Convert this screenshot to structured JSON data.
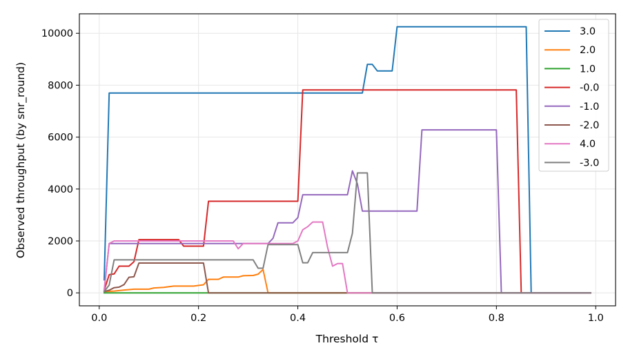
{
  "chart_data": {
    "type": "line",
    "title": "",
    "xlabel": "Threshold τ",
    "ylabel": "Observed throughput (by snr_round)",
    "xlim": [
      -0.04,
      1.04
    ],
    "ylim": [
      -500,
      10750
    ],
    "xticks": [
      0.0,
      0.2,
      0.4,
      0.6,
      0.8,
      1.0
    ],
    "xtick_labels": [
      "0.0",
      "0.2",
      "0.4",
      "0.6",
      "0.8",
      "1.0"
    ],
    "yticks": [
      0,
      2000,
      4000,
      6000,
      8000,
      10000
    ],
    "ytick_labels": [
      "0",
      "2000",
      "4000",
      "6000",
      "8000",
      "10000"
    ],
    "grid": true,
    "legend_position": "top-right",
    "series": [
      {
        "name": "3.0",
        "color": "#1f77b4",
        "points": [
          [
            0.01,
            500
          ],
          [
            0.02,
            7700
          ],
          [
            0.53,
            7700
          ],
          [
            0.54,
            8800
          ],
          [
            0.55,
            8800
          ],
          [
            0.56,
            8550
          ],
          [
            0.59,
            8550
          ],
          [
            0.6,
            10250
          ],
          [
            0.86,
            10250
          ],
          [
            0.87,
            0
          ],
          [
            0.99,
            0
          ]
        ]
      },
      {
        "name": "2.0",
        "color": "#ff7f0e",
        "points": [
          [
            0.01,
            50
          ],
          [
            0.03,
            70
          ],
          [
            0.05,
            110
          ],
          [
            0.07,
            140
          ],
          [
            0.1,
            140
          ],
          [
            0.11,
            190
          ],
          [
            0.13,
            210
          ],
          [
            0.15,
            260
          ],
          [
            0.19,
            260
          ],
          [
            0.21,
            310
          ],
          [
            0.22,
            520
          ],
          [
            0.24,
            520
          ],
          [
            0.25,
            610
          ],
          [
            0.28,
            610
          ],
          [
            0.29,
            660
          ],
          [
            0.31,
            670
          ],
          [
            0.32,
            720
          ],
          [
            0.33,
            900
          ],
          [
            0.34,
            0
          ],
          [
            0.99,
            0
          ]
        ]
      },
      {
        "name": "1.0",
        "color": "#2ca02c",
        "points": [
          [
            0.01,
            0
          ],
          [
            0.99,
            0
          ]
        ]
      },
      {
        "name": "-0.0",
        "color": "#d62728",
        "points": [
          [
            0.01,
            100
          ],
          [
            0.02,
            700
          ],
          [
            0.03,
            730
          ],
          [
            0.04,
            1030
          ],
          [
            0.06,
            1030
          ],
          [
            0.07,
            1200
          ],
          [
            0.08,
            2050
          ],
          [
            0.16,
            2050
          ],
          [
            0.17,
            1800
          ],
          [
            0.21,
            1800
          ],
          [
            0.22,
            3530
          ],
          [
            0.4,
            3530
          ],
          [
            0.41,
            7820
          ],
          [
            0.84,
            7820
          ],
          [
            0.85,
            0
          ],
          [
            0.99,
            0
          ]
        ]
      },
      {
        "name": "-1.0",
        "color": "#9467bd",
        "points": [
          [
            0.01,
            100
          ],
          [
            0.02,
            1900
          ],
          [
            0.34,
            1900
          ],
          [
            0.35,
            2100
          ],
          [
            0.36,
            2700
          ],
          [
            0.39,
            2700
          ],
          [
            0.4,
            2900
          ],
          [
            0.41,
            3780
          ],
          [
            0.5,
            3780
          ],
          [
            0.51,
            4700
          ],
          [
            0.52,
            4200
          ],
          [
            0.53,
            3150
          ],
          [
            0.64,
            3150
          ],
          [
            0.65,
            6280
          ],
          [
            0.8,
            6280
          ],
          [
            0.81,
            0
          ],
          [
            0.99,
            0
          ]
        ]
      },
      {
        "name": "-2.0",
        "color": "#8c564b",
        "points": [
          [
            0.01,
            50
          ],
          [
            0.02,
            100
          ],
          [
            0.03,
            200
          ],
          [
            0.04,
            220
          ],
          [
            0.05,
            320
          ],
          [
            0.06,
            600
          ],
          [
            0.07,
            620
          ],
          [
            0.08,
            1150
          ],
          [
            0.21,
            1150
          ],
          [
            0.22,
            0
          ],
          [
            0.99,
            0
          ]
        ]
      },
      {
        "name": "4.0",
        "color": "#e377c2",
        "points": [
          [
            0.01,
            100
          ],
          [
            0.02,
            1900
          ],
          [
            0.03,
            2000
          ],
          [
            0.27,
            2000
          ],
          [
            0.28,
            1700
          ],
          [
            0.29,
            1900
          ],
          [
            0.39,
            1900
          ],
          [
            0.4,
            2000
          ],
          [
            0.41,
            2430
          ],
          [
            0.42,
            2550
          ],
          [
            0.43,
            2730
          ],
          [
            0.45,
            2730
          ],
          [
            0.46,
            1750
          ],
          [
            0.47,
            1030
          ],
          [
            0.48,
            1130
          ],
          [
            0.49,
            1130
          ],
          [
            0.5,
            0
          ],
          [
            0.99,
            0
          ]
        ]
      },
      {
        "name": "-3.0",
        "color": "#7f7f7f",
        "points": [
          [
            0.01,
            50
          ],
          [
            0.02,
            300
          ],
          [
            0.03,
            1270
          ],
          [
            0.31,
            1270
          ],
          [
            0.32,
            950
          ],
          [
            0.33,
            950
          ],
          [
            0.34,
            1860
          ],
          [
            0.4,
            1860
          ],
          [
            0.41,
            1160
          ],
          [
            0.42,
            1160
          ],
          [
            0.43,
            1550
          ],
          [
            0.5,
            1550
          ],
          [
            0.51,
            2300
          ],
          [
            0.52,
            4620
          ],
          [
            0.54,
            4620
          ],
          [
            0.55,
            0
          ],
          [
            0.99,
            0
          ]
        ]
      }
    ]
  }
}
